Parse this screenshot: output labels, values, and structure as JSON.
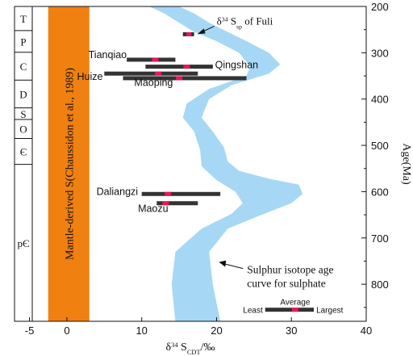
{
  "chart_data": {
    "type": "range",
    "xlabel_main": "δ",
    "xlabel_sup": "34",
    "xlabel_mid": " S",
    "xlabel_sub": "CDT",
    "xlabel_end": "/‰",
    "ylabel": "Age(Ma)",
    "xlim": [
      -7,
      40
    ],
    "ylim": [
      200,
      880
    ],
    "y_reversed": true,
    "x_ticks": [
      "-5",
      "0",
      "10",
      "20",
      "30",
      "40"
    ],
    "x_tick_values": [
      -5,
      0,
      10,
      20,
      30,
      40
    ],
    "y_ticks": [
      "200",
      "300",
      "400",
      "500",
      "600",
      "700",
      "800"
    ],
    "y_tick_values": [
      200,
      300,
      400,
      500,
      600,
      700,
      800
    ],
    "periods": [
      {
        "label": "T",
        "from": 200,
        "to": 252
      },
      {
        "label": "P",
        "from": 252,
        "to": 299
      },
      {
        "label": "C",
        "from": 299,
        "to": 359
      },
      {
        "label": "D",
        "from": 359,
        "to": 419
      },
      {
        "label": "S",
        "from": 419,
        "to": 444
      },
      {
        "label": "O",
        "from": 444,
        "to": 485
      },
      {
        "label": "Є",
        "from": 485,
        "to": 541
      },
      {
        "label": "pЄ",
        "from": 541,
        "to": 880
      }
    ],
    "mantle_band": {
      "label": "Mantle-derived S(Chaussidon et al., 1989)",
      "x": [
        -2.5,
        3
      ],
      "color": "#f08010"
    },
    "deposits": [
      {
        "name": "Tianqiao",
        "age": 315,
        "min": 8,
        "max": 14.5,
        "avg": 11.8
      },
      {
        "name": "Qingshan",
        "age": 330,
        "min": 10.5,
        "max": 19.5,
        "avg": 16
      },
      {
        "name": "Huize",
        "age": 345,
        "min": 5,
        "max": 17.5,
        "avg": 12.2
      },
      {
        "name": "Maoping",
        "age": 355,
        "min": 7.5,
        "max": 24,
        "avg": 15
      },
      {
        "name": "Daliangzi",
        "age": 605,
        "min": 10,
        "max": 20.5,
        "avg": 13.5
      },
      {
        "name": "Maozu",
        "age": 625,
        "min": 12,
        "max": 17.5,
        "avg": 13.2
      }
    ],
    "fuli": {
      "label_main": "δ",
      "label_sup": "34",
      "label_mid": " S",
      "label_sub": "sp",
      "label_end": " of Fuli",
      "age": 260,
      "min": 15.5,
      "max": 17,
      "avg": 16.3
    },
    "curve": {
      "label_line1": "Sulphur isotope age",
      "label_line2": "curve for sulphate",
      "color": "#a6d8f5",
      "left": [
        [
          11,
          200
        ],
        [
          13,
          215
        ],
        [
          15,
          235
        ],
        [
          17,
          255
        ],
        [
          20,
          275
        ],
        [
          23,
          300
        ],
        [
          24.5,
          330
        ],
        [
          24,
          350
        ],
        [
          19,
          378
        ],
        [
          16,
          410
        ],
        [
          15.5,
          440
        ],
        [
          17,
          470
        ],
        [
          17.8,
          510
        ],
        [
          18,
          545
        ],
        [
          20,
          575
        ],
        [
          22.5,
          600
        ],
        [
          23.5,
          625
        ],
        [
          22,
          648
        ],
        [
          18,
          680
        ],
        [
          14.5,
          730
        ],
        [
          14,
          800
        ],
        [
          14.5,
          880
        ]
      ],
      "right": [
        [
          15,
          200
        ],
        [
          17,
          215
        ],
        [
          19,
          235
        ],
        [
          21.5,
          255
        ],
        [
          24,
          275
        ],
        [
          27,
          300
        ],
        [
          28.5,
          325
        ],
        [
          27,
          345
        ],
        [
          22,
          370
        ],
        [
          19,
          400
        ],
        [
          18,
          440
        ],
        [
          19.5,
          470
        ],
        [
          21,
          505
        ],
        [
          21.5,
          535
        ],
        [
          23,
          555
        ],
        [
          27,
          572
        ],
        [
          31,
          585
        ],
        [
          31.5,
          605
        ],
        [
          30,
          625
        ],
        [
          26,
          650
        ],
        [
          21.5,
          680
        ],
        [
          19,
          730
        ],
        [
          19.5,
          800
        ],
        [
          20.5,
          880
        ]
      ]
    },
    "legend": {
      "least": "Least",
      "average": "Average",
      "largest": "Largest",
      "age": 855,
      "min": 26.5,
      "max": 33,
      "avg": 30.5
    },
    "colors": {
      "bar": "#333333",
      "avg_mark": "#e8185a",
      "axis": "#111111"
    }
  }
}
